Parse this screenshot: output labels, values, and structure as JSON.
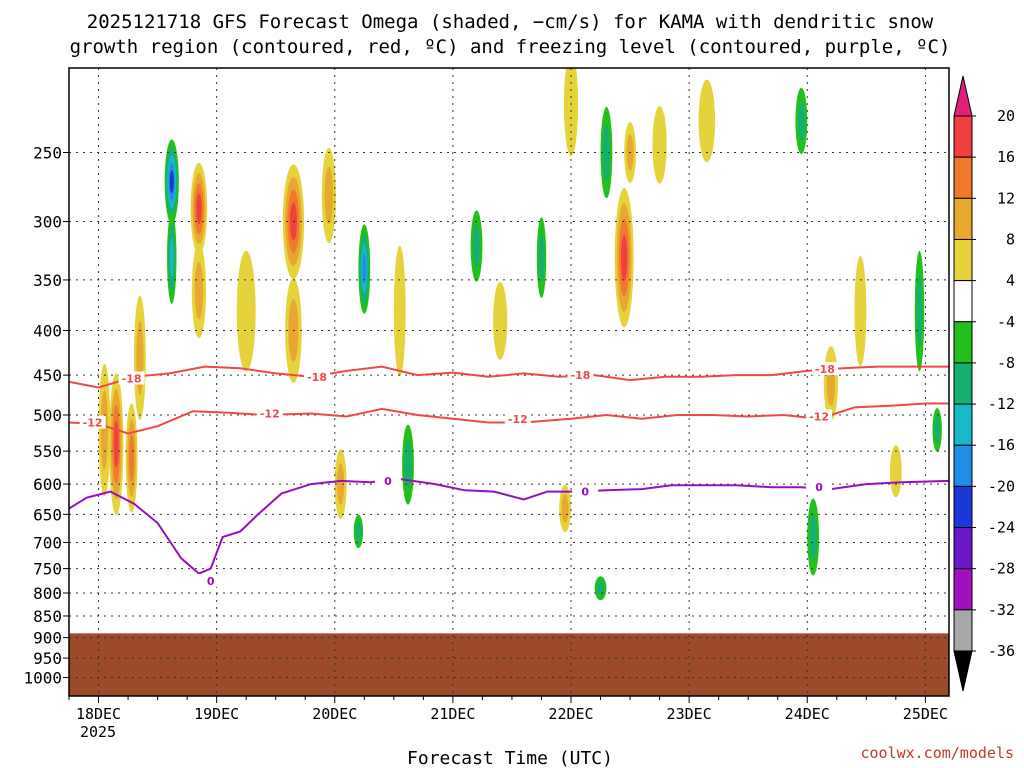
{
  "chart_data": {
    "type": "heatmap",
    "title": [
      "2025121718 GFS Forecast Omega (shaded, −cm/s) for KAMA with dendritic snow",
      "growth region (contoured, red, ºC) and freezing level (contoured, purple, ºC)"
    ],
    "xlabel": "Forecast Time (UTC)",
    "ylabel": "",
    "x_ticks": [
      "18DEC",
      "19DEC",
      "20DEC",
      "21DEC",
      "22DEC",
      "23DEC",
      "24DEC",
      "25DEC"
    ],
    "x_tick_year": "2025",
    "x_range": [
      -0.25,
      7.2
    ],
    "y_ticks": [
      250,
      300,
      350,
      400,
      450,
      500,
      550,
      600,
      650,
      700,
      750,
      800,
      850,
      900,
      950,
      1000
    ],
    "y_tick_labels": [
      "250",
      "300",
      "350",
      "400",
      "450",
      "500",
      "550",
      "600",
      "650",
      "700",
      "750",
      "800",
      "850",
      "900",
      "950",
      "1000"
    ],
    "y_range": [
      200,
      1050
    ],
    "y_scale": "log",
    "y_reversed": true,
    "grid": true,
    "ground_pressure_top": 890,
    "colorbar": {
      "ticks": [
        "20",
        "16",
        "12",
        "8",
        "4",
        "-4",
        "-8",
        "-12",
        "-16",
        "-20",
        "-24",
        "-28",
        "-32",
        "-36"
      ],
      "colors": [
        "#e0207a",
        "#f04040",
        "#f07a2a",
        "#e8a830",
        "#e6d23a",
        "#ffffff",
        "#22c01a",
        "#14b070",
        "#18b8c8",
        "#1e8ee8",
        "#1a38d8",
        "#6a18c8",
        "#a010c0",
        "#a8a8a8",
        "#000000"
      ],
      "top_color": "#e0207a",
      "bottom_color": "#000000"
    },
    "omega_blobs": [
      {
        "x": 0.05,
        "p": 520,
        "w": 0.05,
        "h": 180,
        "v": 10
      },
      {
        "x": 0.15,
        "p": 540,
        "w": 0.06,
        "h": 200,
        "v": 16
      },
      {
        "x": 0.28,
        "p": 560,
        "w": 0.05,
        "h": 160,
        "v": 14
      },
      {
        "x": 0.35,
        "p": 430,
        "w": 0.05,
        "h": 140,
        "v": 10
      },
      {
        "x": 0.62,
        "p": 270,
        "w": 0.06,
        "h": 60,
        "v": -20
      },
      {
        "x": 0.62,
        "p": 330,
        "w": 0.04,
        "h": 80,
        "v": -12
      },
      {
        "x": 0.85,
        "p": 290,
        "w": 0.07,
        "h": 70,
        "v": 16
      },
      {
        "x": 0.85,
        "p": 360,
        "w": 0.06,
        "h": 90,
        "v": 8
      },
      {
        "x": 1.25,
        "p": 380,
        "w": 0.08,
        "h": 120,
        "v": 6
      },
      {
        "x": 1.65,
        "p": 300,
        "w": 0.09,
        "h": 90,
        "v": 18
      },
      {
        "x": 1.65,
        "p": 400,
        "w": 0.07,
        "h": 110,
        "v": 8
      },
      {
        "x": 1.95,
        "p": 280,
        "w": 0.06,
        "h": 70,
        "v": 10
      },
      {
        "x": 2.25,
        "p": 340,
        "w": 0.05,
        "h": 80,
        "v": -16
      },
      {
        "x": 2.55,
        "p": 380,
        "w": 0.05,
        "h": 130,
        "v": 6
      },
      {
        "x": 2.62,
        "p": 570,
        "w": 0.05,
        "h": 120,
        "v": -8
      },
      {
        "x": 2.05,
        "p": 600,
        "w": 0.05,
        "h": 110,
        "v": 8
      },
      {
        "x": 2.2,
        "p": 680,
        "w": 0.04,
        "h": 60,
        "v": -10
      },
      {
        "x": 3.2,
        "p": 320,
        "w": 0.05,
        "h": 60,
        "v": -8
      },
      {
        "x": 3.4,
        "p": 390,
        "w": 0.06,
        "h": 80,
        "v": 6
      },
      {
        "x": 3.75,
        "p": 330,
        "w": 0.04,
        "h": 70,
        "v": -8
      },
      {
        "x": 4.0,
        "p": 220,
        "w": 0.06,
        "h": 60,
        "v": 6
      },
      {
        "x": 4.45,
        "p": 330,
        "w": 0.08,
        "h": 120,
        "v": 16
      },
      {
        "x": 4.5,
        "p": 250,
        "w": 0.05,
        "h": 40,
        "v": 10
      },
      {
        "x": 4.3,
        "p": 250,
        "w": 0.05,
        "h": 60,
        "v": -8
      },
      {
        "x": 3.95,
        "p": 640,
        "w": 0.05,
        "h": 80,
        "v": 8
      },
      {
        "x": 4.25,
        "p": 790,
        "w": 0.05,
        "h": 50,
        "v": -8
      },
      {
        "x": 4.75,
        "p": 245,
        "w": 0.06,
        "h": 50,
        "v": 6
      },
      {
        "x": 5.15,
        "p": 230,
        "w": 0.07,
        "h": 50,
        "v": 4
      },
      {
        "x": 5.95,
        "p": 230,
        "w": 0.05,
        "h": 40,
        "v": -8
      },
      {
        "x": 6.2,
        "p": 460,
        "w": 0.06,
        "h": 90,
        "v": 10
      },
      {
        "x": 6.05,
        "p": 690,
        "w": 0.05,
        "h": 140,
        "v": -10
      },
      {
        "x": 6.45,
        "p": 380,
        "w": 0.05,
        "h": 110,
        "v": 4
      },
      {
        "x": 6.75,
        "p": 580,
        "w": 0.05,
        "h": 80,
        "v": 6
      },
      {
        "x": 6.95,
        "p": 380,
        "w": 0.04,
        "h": 120,
        "v": -8
      },
      {
        "x": 7.1,
        "p": 520,
        "w": 0.04,
        "h": 60,
        "v": -10
      }
    ],
    "series": [
      {
        "name": "-18",
        "color": "#f04848",
        "points": [
          [
            -0.25,
            458
          ],
          [
            0.0,
            465
          ],
          [
            0.3,
            452
          ],
          [
            0.6,
            448
          ],
          [
            0.9,
            440
          ],
          [
            1.2,
            442
          ],
          [
            1.5,
            448
          ],
          [
            1.8,
            452
          ],
          [
            2.1,
            445
          ],
          [
            2.4,
            440
          ],
          [
            2.7,
            450
          ],
          [
            3.0,
            447
          ],
          [
            3.3,
            452
          ],
          [
            3.6,
            448
          ],
          [
            3.9,
            452
          ],
          [
            4.2,
            450
          ],
          [
            4.5,
            456
          ],
          [
            4.8,
            452
          ],
          [
            5.1,
            452
          ],
          [
            5.4,
            450
          ],
          [
            5.7,
            450
          ],
          [
            6.0,
            445
          ],
          [
            6.3,
            442
          ],
          [
            6.6,
            440
          ],
          [
            6.9,
            440
          ],
          [
            7.2,
            440
          ]
        ],
        "labels": [
          [
            0.28,
            454,
            "-18"
          ],
          [
            1.85,
            452,
            "-18"
          ],
          [
            4.08,
            450,
            "-18"
          ],
          [
            6.15,
            443,
            "-18"
          ]
        ]
      },
      {
        "name": "-12",
        "color": "#f04848",
        "points": [
          [
            -0.25,
            510
          ],
          [
            0.0,
            512
          ],
          [
            0.25,
            525
          ],
          [
            0.5,
            515
          ],
          [
            0.8,
            495
          ],
          [
            1.1,
            497
          ],
          [
            1.4,
            500
          ],
          [
            1.8,
            498
          ],
          [
            2.1,
            502
          ],
          [
            2.4,
            492
          ],
          [
            2.7,
            500
          ],
          [
            3.0,
            505
          ],
          [
            3.3,
            510
          ],
          [
            3.6,
            510
          ],
          [
            4.0,
            505
          ],
          [
            4.3,
            500
          ],
          [
            4.6,
            505
          ],
          [
            4.9,
            500
          ],
          [
            5.2,
            500
          ],
          [
            5.5,
            502
          ],
          [
            5.8,
            500
          ],
          [
            6.1,
            505
          ],
          [
            6.4,
            490
          ],
          [
            6.7,
            488
          ],
          [
            7.0,
            485
          ],
          [
            7.2,
            485
          ]
        ],
        "labels": [
          [
            -0.05,
            510,
            "-12"
          ],
          [
            1.45,
            498,
            "-12"
          ],
          [
            3.55,
            505,
            "-12"
          ],
          [
            6.1,
            502,
            "-12"
          ]
        ]
      },
      {
        "name": "0",
        "color": "#9410c0",
        "points": [
          [
            -0.25,
            640
          ],
          [
            -0.1,
            622
          ],
          [
            0.1,
            612
          ],
          [
            0.3,
            632
          ],
          [
            0.5,
            665
          ],
          [
            0.7,
            730
          ],
          [
            0.85,
            760
          ],
          [
            0.95,
            750
          ],
          [
            1.05,
            690
          ],
          [
            1.2,
            680
          ],
          [
            1.35,
            650
          ],
          [
            1.55,
            615
          ],
          [
            1.8,
            600
          ],
          [
            2.05,
            595
          ],
          [
            2.3,
            597
          ],
          [
            2.55,
            592
          ],
          [
            2.85,
            600
          ],
          [
            3.1,
            610
          ],
          [
            3.35,
            612
          ],
          [
            3.6,
            625
          ],
          [
            3.8,
            612
          ],
          [
            4.05,
            612
          ],
          [
            4.3,
            610
          ],
          [
            4.6,
            608
          ],
          [
            4.85,
            602
          ],
          [
            5.1,
            602
          ],
          [
            5.4,
            602
          ],
          [
            5.7,
            605
          ],
          [
            5.95,
            605
          ],
          [
            6.2,
            608
          ],
          [
            6.5,
            600
          ],
          [
            6.8,
            597
          ],
          [
            7.2,
            595
          ]
        ],
        "labels": [
          [
            0.95,
            775,
            "0"
          ],
          [
            2.45,
            595,
            "0"
          ],
          [
            4.12,
            612,
            "0"
          ],
          [
            6.1,
            605,
            "0"
          ]
        ]
      }
    ]
  },
  "credit": "coolwx.com/models"
}
